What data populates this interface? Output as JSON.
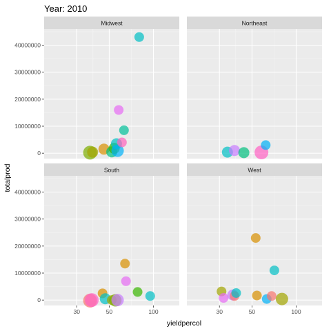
{
  "chart_data": {
    "type": "scatter",
    "title": "Year: 2010",
    "xlabel": "yieldpercol",
    "ylabel": "totalprod",
    "x_scale": "log10",
    "xlim": [
      18,
      150
    ],
    "ylim": [
      -2000000,
      46000000
    ],
    "x_ticks": [
      30,
      50,
      100
    ],
    "x_tick_labels": [
      "30",
      "50",
      "100"
    ],
    "y_ticks": [
      0,
      10000000,
      20000000,
      30000000,
      40000000
    ],
    "y_tick_labels": [
      "0",
      "10000000",
      "20000000",
      "30000000",
      "40000000"
    ],
    "grid": true,
    "legend": "none",
    "colors": {
      "panel_background": "#ebebeb",
      "strip_background": "#d9d9d9",
      "grid_major": "#ffffff",
      "grid_minor": "#f5f5f5"
    },
    "panels": [
      {
        "name": "Midwest",
        "points": [
          {
            "x": 37,
            "y": 200000,
            "size": 10,
            "color": "#7cae00"
          },
          {
            "x": 38.5,
            "y": 400000,
            "size": 8,
            "color": "#a3a500"
          },
          {
            "x": 46,
            "y": 1500000,
            "size": 8,
            "color": "#d89000"
          },
          {
            "x": 52,
            "y": 500000,
            "size": 8,
            "color": "#00bf7d"
          },
          {
            "x": 54,
            "y": 1800000,
            "size": 8,
            "color": "#39b600"
          },
          {
            "x": 56,
            "y": 3500000,
            "size": 8,
            "color": "#00bfc4"
          },
          {
            "x": 57,
            "y": 900000,
            "size": 9,
            "color": "#00b0f6"
          },
          {
            "x": 58,
            "y": 16000000,
            "size": 7,
            "color": "#e76bf3"
          },
          {
            "x": 61,
            "y": 4000000,
            "size": 7,
            "color": "#ff62bc"
          },
          {
            "x": 63,
            "y": 8500000,
            "size": 7,
            "color": "#00c19a"
          },
          {
            "x": 80,
            "y": 43000000,
            "size": 7,
            "color": "#00bfc4"
          }
        ]
      },
      {
        "name": "Northeast",
        "points": [
          {
            "x": 34,
            "y": 400000,
            "size": 8,
            "color": "#00bfc4"
          },
          {
            "x": 38,
            "y": 1000000,
            "size": 8,
            "color": "#c77cff"
          },
          {
            "x": 44,
            "y": 200000,
            "size": 8,
            "color": "#00bf7d"
          },
          {
            "x": 58,
            "y": 300000,
            "size": 10,
            "color": "#ff61c3"
          },
          {
            "x": 62,
            "y": 3000000,
            "size": 7,
            "color": "#00b0f6"
          }
        ]
      },
      {
        "name": "South",
        "points": [
          {
            "x": 37,
            "y": -200000,
            "size": 10,
            "color": "#f8766d"
          },
          {
            "x": 38,
            "y": 0,
            "size": 10,
            "color": "#ff61c3"
          },
          {
            "x": 45,
            "y": 2500000,
            "size": 7,
            "color": "#d89000"
          },
          {
            "x": 47,
            "y": 500000,
            "size": 8,
            "color": "#00bfc4"
          },
          {
            "x": 52,
            "y": 0,
            "size": 7,
            "color": "#a3a500"
          },
          {
            "x": 55,
            "y": -100000,
            "size": 9,
            "color": "#7cae00"
          },
          {
            "x": 57,
            "y": 0,
            "size": 9,
            "color": "#c77cff"
          },
          {
            "x": 64,
            "y": 13500000,
            "size": 7,
            "color": "#d89000"
          },
          {
            "x": 65,
            "y": 7000000,
            "size": 7,
            "color": "#e76bf3"
          },
          {
            "x": 78,
            "y": 3000000,
            "size": 7,
            "color": "#39b600"
          },
          {
            "x": 95,
            "y": 1500000,
            "size": 7,
            "color": "#00bfc4"
          }
        ]
      },
      {
        "name": "West",
        "points": [
          {
            "x": 31,
            "y": 3200000,
            "size": 7,
            "color": "#a3a500"
          },
          {
            "x": 32,
            "y": 800000,
            "size": 7,
            "color": "#e76bf3"
          },
          {
            "x": 37,
            "y": 1900000,
            "size": 8,
            "color": "#c77cff"
          },
          {
            "x": 38,
            "y": 1500000,
            "size": 7,
            "color": "#f8766d"
          },
          {
            "x": 39,
            "y": 2600000,
            "size": 7,
            "color": "#00bfc4"
          },
          {
            "x": 53,
            "y": 23000000,
            "size": 7,
            "color": "#d89000"
          },
          {
            "x": 54,
            "y": 1700000,
            "size": 7,
            "color": "#d89000"
          },
          {
            "x": 63,
            "y": 400000,
            "size": 7,
            "color": "#00b0f6"
          },
          {
            "x": 68,
            "y": 1500000,
            "size": 7,
            "color": "#f8766d"
          },
          {
            "x": 71,
            "y": 11000000,
            "size": 7,
            "color": "#00bfc4"
          },
          {
            "x": 80,
            "y": 400000,
            "size": 9,
            "color": "#a3a500"
          }
        ]
      }
    ]
  }
}
